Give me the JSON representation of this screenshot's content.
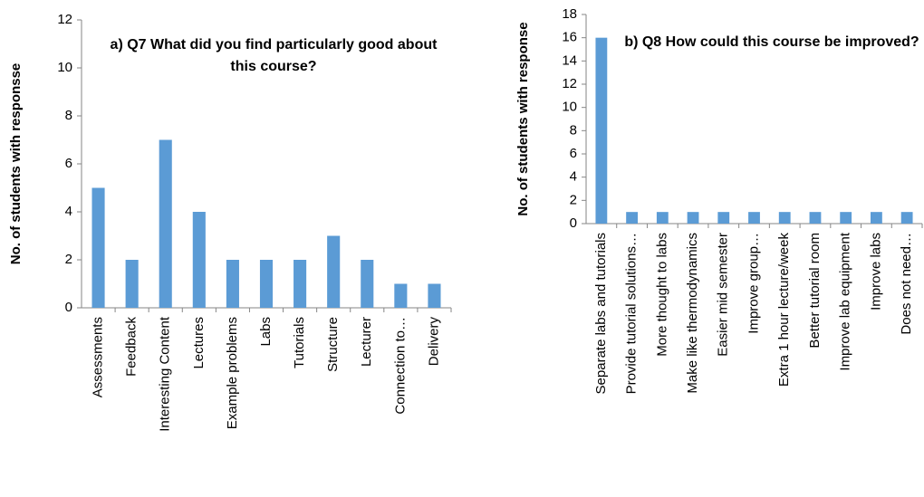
{
  "chart_data": [
    {
      "type": "bar",
      "title": "a) Q7 What did you find particularly good about this course?",
      "y_label": "No. of students with responsse",
      "categories": [
        "Assessments",
        "Feedback",
        "Interesting Content",
        "Lectures",
        "Example problems",
        "Labs",
        "Tutorials",
        "Structure",
        "Lecturer",
        "Connection to…",
        "Delivery"
      ],
      "values": [
        5,
        2,
        7,
        4,
        2,
        2,
        2,
        3,
        2,
        1,
        1
      ],
      "color": "#5b9bd5",
      "ylim": [
        0,
        12
      ],
      "yticks": [
        0,
        2,
        4,
        6,
        8,
        10,
        12
      ],
      "grid": false
    },
    {
      "type": "bar",
      "title": "b) Q8 How could this course be improved?",
      "y_label": "No. of students with response",
      "categories": [
        "Separate labs and tutorials",
        "Provide tutorial solutions…",
        "More thought to labs",
        "Make like thermodynamics",
        "Easier mid semester",
        "Improve group…",
        "Extra 1 hour lecture/week",
        "Better tutorial room",
        "Improve lab equipment",
        "Improve labs",
        "Does not need…"
      ],
      "values": [
        16,
        1,
        1,
        1,
        1,
        1,
        1,
        1,
        1,
        1,
        1
      ],
      "color": "#5b9bd5",
      "ylim": [
        0,
        18
      ],
      "yticks": [
        0,
        2,
        4,
        6,
        8,
        10,
        12,
        14,
        16,
        18
      ],
      "grid": false
    }
  ]
}
